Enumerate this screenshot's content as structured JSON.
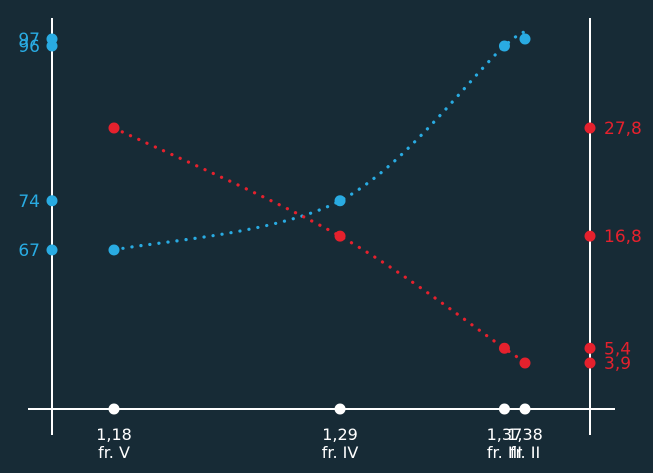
{
  "chart_data": {
    "type": "line",
    "categories": [
      {
        "value": "1,18",
        "label": "fr. V",
        "x": 1.18
      },
      {
        "value": "1,29",
        "label": "fr. IV",
        "x": 1.29
      },
      {
        "value": "1,37",
        "label": "fr. III",
        "x": 1.37
      },
      {
        "value": "1,38",
        "label": "fr. II",
        "x": 1.38
      }
    ],
    "series": [
      {
        "axis": "left",
        "color": "#29abe2",
        "values": [
          67,
          74,
          96,
          97
        ],
        "labels": [
          "67",
          "74",
          "96",
          "97"
        ]
      },
      {
        "axis": "right",
        "color": "#e5212d",
        "values": [
          27.8,
          16.8,
          5.4,
          3.9
        ],
        "labels": [
          "27,8",
          "16,8",
          "5,4",
          "3,9"
        ]
      }
    ],
    "left_axis": {
      "ticks": [
        67,
        74,
        96,
        97
      ]
    },
    "right_axis": {
      "ticks": [
        3.9,
        5.4,
        16.8,
        27.8
      ]
    },
    "grid": false,
    "legend": "none"
  }
}
